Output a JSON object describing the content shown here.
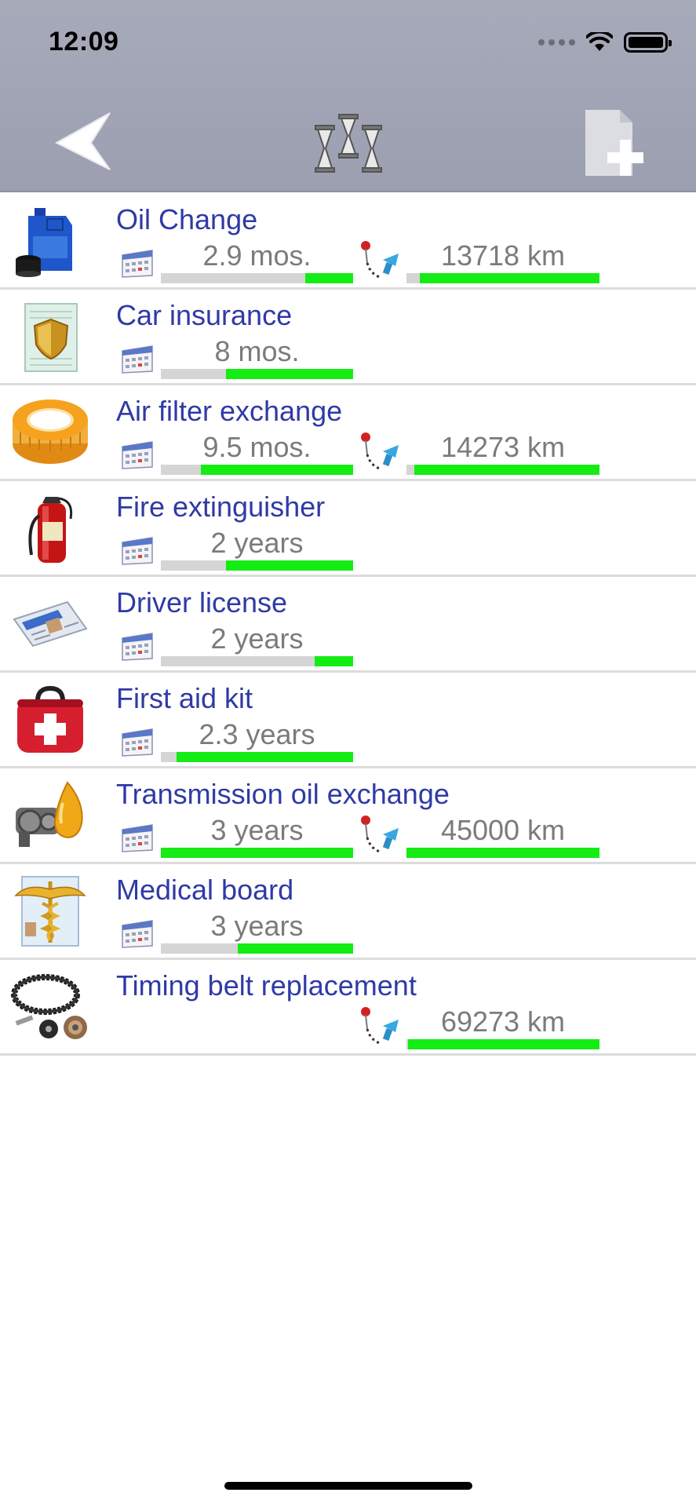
{
  "status_bar": {
    "time": "12:09"
  },
  "nav": {
    "back_icon": "back-arrow-icon",
    "center_icon": "hourglasses-icon",
    "add_icon": "add-document-icon"
  },
  "colors": {
    "title": "#2f3aa6",
    "value": "#7b7b7b",
    "progress_fill": "#14ec14",
    "progress_track": "#d5d5d5"
  },
  "items": [
    {
      "title": "Oil Change",
      "icon": "oil-can-and-filter-icon",
      "time": "2.9 mos.",
      "time_progress": 0.25,
      "distance": "13718 km",
      "distance_progress": 0.93
    },
    {
      "title": "Car insurance",
      "icon": "insurance-shield-icon",
      "time": "8 mos.",
      "time_progress": 0.66
    },
    {
      "title": "Air filter exchange",
      "icon": "air-filter-icon",
      "time": "9.5 mos.",
      "time_progress": 0.79,
      "distance": "14273 km",
      "distance_progress": 0.96
    },
    {
      "title": "Fire extinguisher",
      "icon": "fire-extinguisher-icon",
      "time": "2 years",
      "time_progress": 0.66
    },
    {
      "title": "Driver license",
      "icon": "driver-license-icon",
      "time": "2 years",
      "time_progress": 0.2
    },
    {
      "title": "First aid kit",
      "icon": "first-aid-kit-icon",
      "time": "2.3 years",
      "time_progress": 0.92
    },
    {
      "title": "Transmission oil exchange",
      "icon": "transmission-oil-icon",
      "time": "3 years",
      "time_progress": 1.0,
      "distance": "45000 km",
      "distance_progress": 1.0
    },
    {
      "title": "Medical board",
      "icon": "medical-caduceus-icon",
      "time": "3 years",
      "time_progress": 0.6
    },
    {
      "title": "Timing belt replacement",
      "icon": "timing-belt-icon",
      "distance": "69273 km",
      "distance_progress": 0.99
    }
  ]
}
